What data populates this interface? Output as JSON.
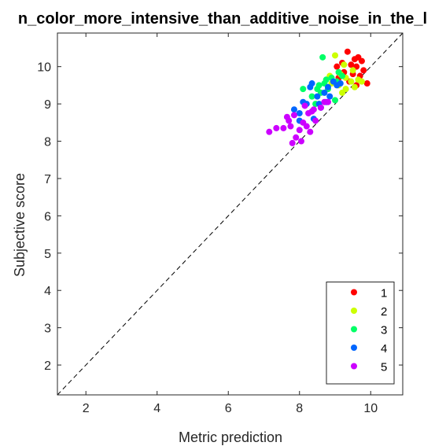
{
  "chart_data": {
    "type": "scatter",
    "title": "n_color_more_intensive_than_additive_noise_in_the_l",
    "xlabel": "Metric prediction",
    "ylabel": "Subjective score",
    "xlim": [
      1.2,
      10.9
    ],
    "ylim": [
      1.2,
      10.9
    ],
    "xticks": [
      2,
      4,
      6,
      8,
      10
    ],
    "yticks": [
      2,
      3,
      4,
      5,
      6,
      7,
      8,
      9,
      10
    ],
    "grid": false,
    "diagonal_reference_line": true,
    "legend_position": "bottom-right",
    "series": [
      {
        "name": "1",
        "color": "#ff0000",
        "points": [
          [
            9.35,
            10.4
          ],
          [
            9.55,
            10.2
          ],
          [
            9.65,
            10.25
          ],
          [
            9.75,
            10.15
          ],
          [
            9.2,
            10.1
          ],
          [
            9.45,
            10.05
          ],
          [
            9.05,
            10.0
          ],
          [
            9.6,
            10.0
          ],
          [
            9.8,
            9.9
          ],
          [
            9.25,
            9.85
          ],
          [
            9.5,
            9.8
          ],
          [
            9.7,
            9.75
          ],
          [
            9.9,
            9.55
          ],
          [
            9.4,
            9.6
          ],
          [
            9.1,
            9.7
          ],
          [
            9.6,
            9.5
          ]
        ]
      },
      {
        "name": "2",
        "color": "#ccff00",
        "points": [
          [
            9.0,
            10.3
          ],
          [
            8.85,
            9.75
          ],
          [
            9.15,
            9.8
          ],
          [
            9.3,
            9.7
          ],
          [
            9.5,
            9.9
          ],
          [
            9.1,
            9.5
          ],
          [
            9.3,
            9.4
          ],
          [
            9.45,
            9.6
          ],
          [
            9.65,
            9.65
          ],
          [
            9.2,
            9.3
          ],
          [
            9.75,
            9.6
          ],
          [
            9.25,
            10.05
          ],
          [
            9.55,
            9.45
          ],
          [
            8.9,
            9.55
          ]
        ]
      },
      {
        "name": "3",
        "color": "#00ff66",
        "points": [
          [
            8.65,
            10.25
          ],
          [
            8.1,
            9.4
          ],
          [
            8.35,
            9.2
          ],
          [
            8.55,
            9.5
          ],
          [
            8.7,
            9.55
          ],
          [
            8.8,
            9.4
          ],
          [
            8.9,
            9.7
          ],
          [
            9.0,
            9.1
          ],
          [
            9.05,
            9.6
          ],
          [
            9.2,
            9.75
          ],
          [
            8.6,
            9.3
          ],
          [
            8.45,
            9.0
          ],
          [
            8.75,
            9.65
          ],
          [
            9.1,
            9.85
          ],
          [
            8.5,
            9.4
          ]
        ]
      },
      {
        "name": "4",
        "color": "#0066ff",
        "points": [
          [
            7.85,
            8.85
          ],
          [
            8.0,
            8.75
          ],
          [
            8.2,
            9.0
          ],
          [
            8.35,
            9.55
          ],
          [
            8.5,
            9.2
          ],
          [
            8.6,
            8.9
          ],
          [
            8.7,
            9.3
          ],
          [
            8.8,
            9.45
          ],
          [
            8.95,
            9.6
          ],
          [
            9.05,
            9.5
          ],
          [
            8.1,
            9.05
          ],
          [
            8.4,
            8.6
          ],
          [
            8.55,
            9.0
          ],
          [
            8.75,
            9.05
          ],
          [
            9.15,
            9.55
          ],
          [
            8.3,
            9.45
          ],
          [
            8.0,
            8.55
          ],
          [
            8.85,
            9.2
          ]
        ]
      },
      {
        "name": "5",
        "color": "#cc00ff",
        "points": [
          [
            7.15,
            8.25
          ],
          [
            7.35,
            8.35
          ],
          [
            7.55,
            8.35
          ],
          [
            7.65,
            8.65
          ],
          [
            7.75,
            8.4
          ],
          [
            7.8,
            7.95
          ],
          [
            7.9,
            8.1
          ],
          [
            8.0,
            8.3
          ],
          [
            8.1,
            8.5
          ],
          [
            8.2,
            8.4
          ],
          [
            8.25,
            8.75
          ],
          [
            8.35,
            8.8
          ],
          [
            8.45,
            8.55
          ],
          [
            8.6,
            8.9
          ],
          [
            8.7,
            9.05
          ],
          [
            8.8,
            9.05
          ],
          [
            7.7,
            8.55
          ],
          [
            8.05,
            8.0
          ],
          [
            8.15,
            8.95
          ],
          [
            8.3,
            8.25
          ],
          [
            7.85,
            8.7
          ],
          [
            8.4,
            8.85
          ]
        ]
      }
    ]
  }
}
